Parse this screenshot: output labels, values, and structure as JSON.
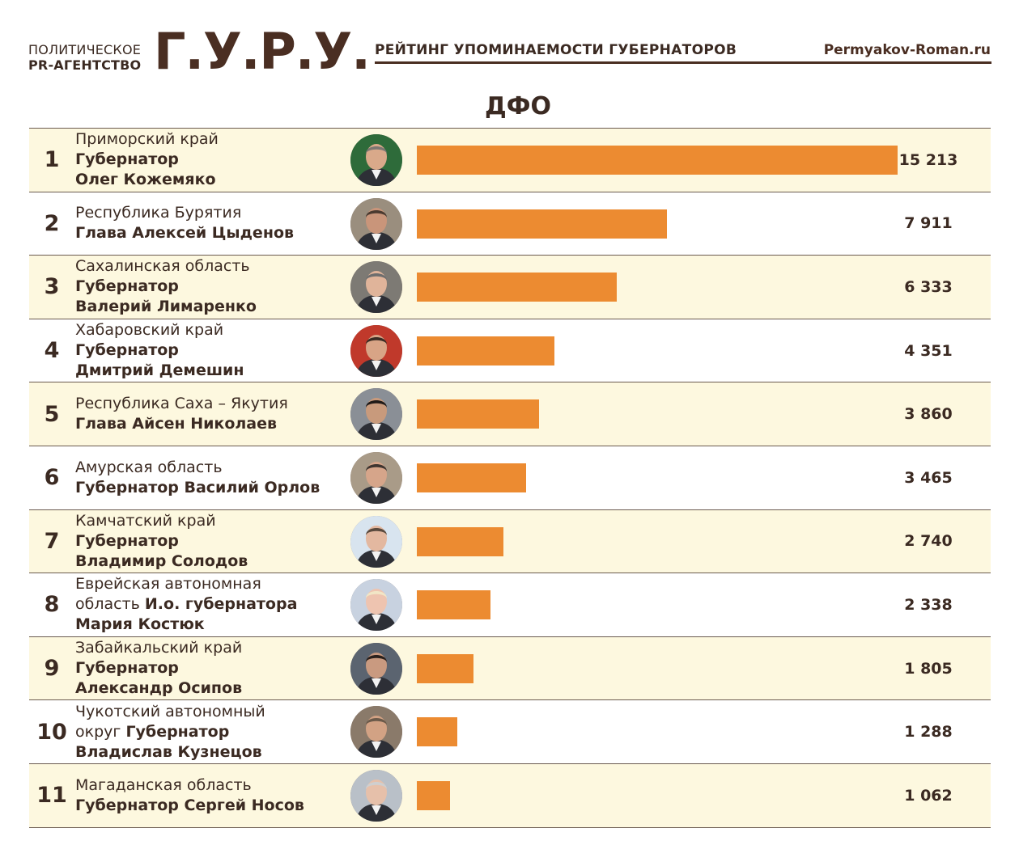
{
  "header": {
    "agency_line1": "ПОЛИТИЧЕСКОЕ",
    "agency_line2": "PR-АГЕНТСТВО",
    "logo": "Г.У.Р.У.",
    "title": "РЕЙТИНГ УПОМИНАЕМОСТИ ГУБЕРНАТОРОВ",
    "site": "Permyakov-Roman.ru"
  },
  "section_title": "ДФО",
  "colors": {
    "bar": "#ec8b31",
    "alt_row": "#fdf8df",
    "text": "#3b2a22"
  },
  "chart_data": {
    "type": "bar",
    "orientation": "horizontal",
    "title": "ДФО",
    "categories": [
      "Приморский край Губернатор Олег Кожемяко",
      "Республика Бурятия Глава Алексей Цыденов",
      "Сахалинская область Губернатор Валерий Лимаренко",
      "Хабаровский край Губернатор Дмитрий Демешин",
      "Республика Саха – Якутия Глава Айсен Николаев",
      "Амурская область Губернатор Василий Орлов",
      "Камчатский край Губернатор Владимир Солодов",
      "Еврейская автономная область И.о. губернатора Мария Костюк",
      "Забайкальский край Губернатор Александр Осипов",
      "Чукотский автономный округ Губернатор Владислав Кузнецов",
      "Магаданская область Губернатор Сергей Носов"
    ],
    "values": [
      15213,
      7911,
      6333,
      4351,
      3860,
      3465,
      2740,
      2338,
      1805,
      1288,
      1062
    ],
    "xlim": [
      0,
      15213
    ],
    "grid": false,
    "legend": "none"
  },
  "rows": [
    {
      "rank": "1",
      "line1": "Приморский край",
      "line2_plain": "",
      "line2_bold": "Губернатор",
      "line3": "Олег Кожемяко",
      "value_label": "15 213",
      "avatar": "portrait-1"
    },
    {
      "rank": "2",
      "line1": "Республика Бурятия",
      "line2_plain": "",
      "line2_bold": "Глава Алексей Цыденов",
      "line3": "",
      "value_label": "7 911",
      "avatar": "portrait-2"
    },
    {
      "rank": "3",
      "line1": "Сахалинская область",
      "line2_plain": "",
      "line2_bold": "Губернатор",
      "line3": "Валерий Лимаренко",
      "value_label": "6 333",
      "avatar": "portrait-3"
    },
    {
      "rank": "4",
      "line1": "Хабаровский край",
      "line2_plain": "",
      "line2_bold": "Губернатор",
      "line3": "Дмитрий Демешин",
      "value_label": "4 351",
      "avatar": "portrait-4"
    },
    {
      "rank": "5",
      "line1": "Республика Саха – Якутия",
      "line2_plain": "",
      "line2_bold": "Глава Айсен Николаев",
      "line3": "",
      "value_label": "3 860",
      "avatar": "portrait-5"
    },
    {
      "rank": "6",
      "line1": "Амурская область",
      "line2_plain": "",
      "line2_bold": "Губернатор Василий Орлов",
      "line3": "",
      "value_label": "3 465",
      "avatar": "portrait-6"
    },
    {
      "rank": "7",
      "line1": "Камчатский край",
      "line2_plain": "",
      "line2_bold": "Губернатор",
      "line3": "Владимир Солодов",
      "value_label": "2 740",
      "avatar": "portrait-7"
    },
    {
      "rank": "8",
      "line1": "Еврейская автономная",
      "line2_plain": "область ",
      "line2_bold": "И.о. губернатора",
      "line3": "Мария Костюк",
      "value_label": "2 338",
      "avatar": "portrait-8"
    },
    {
      "rank": "9",
      "line1": "Забайкальский край",
      "line2_plain": "",
      "line2_bold": "Губернатор",
      "line3": "Александр Осипов",
      "value_label": "1 805",
      "avatar": "portrait-9"
    },
    {
      "rank": "10",
      "line1": "Чукотский автономный",
      "line2_plain": "округ ",
      "line2_bold": "Губернатор",
      "line3": "Владислав Кузнецов",
      "value_label": "1 288",
      "avatar": "portrait-10"
    },
    {
      "rank": "11",
      "line1": "Магаданская область",
      "line2_plain": "",
      "line2_bold": "Губернатор Сергей Носов",
      "line3": "",
      "value_label": "1 062",
      "avatar": "portrait-11"
    }
  ]
}
